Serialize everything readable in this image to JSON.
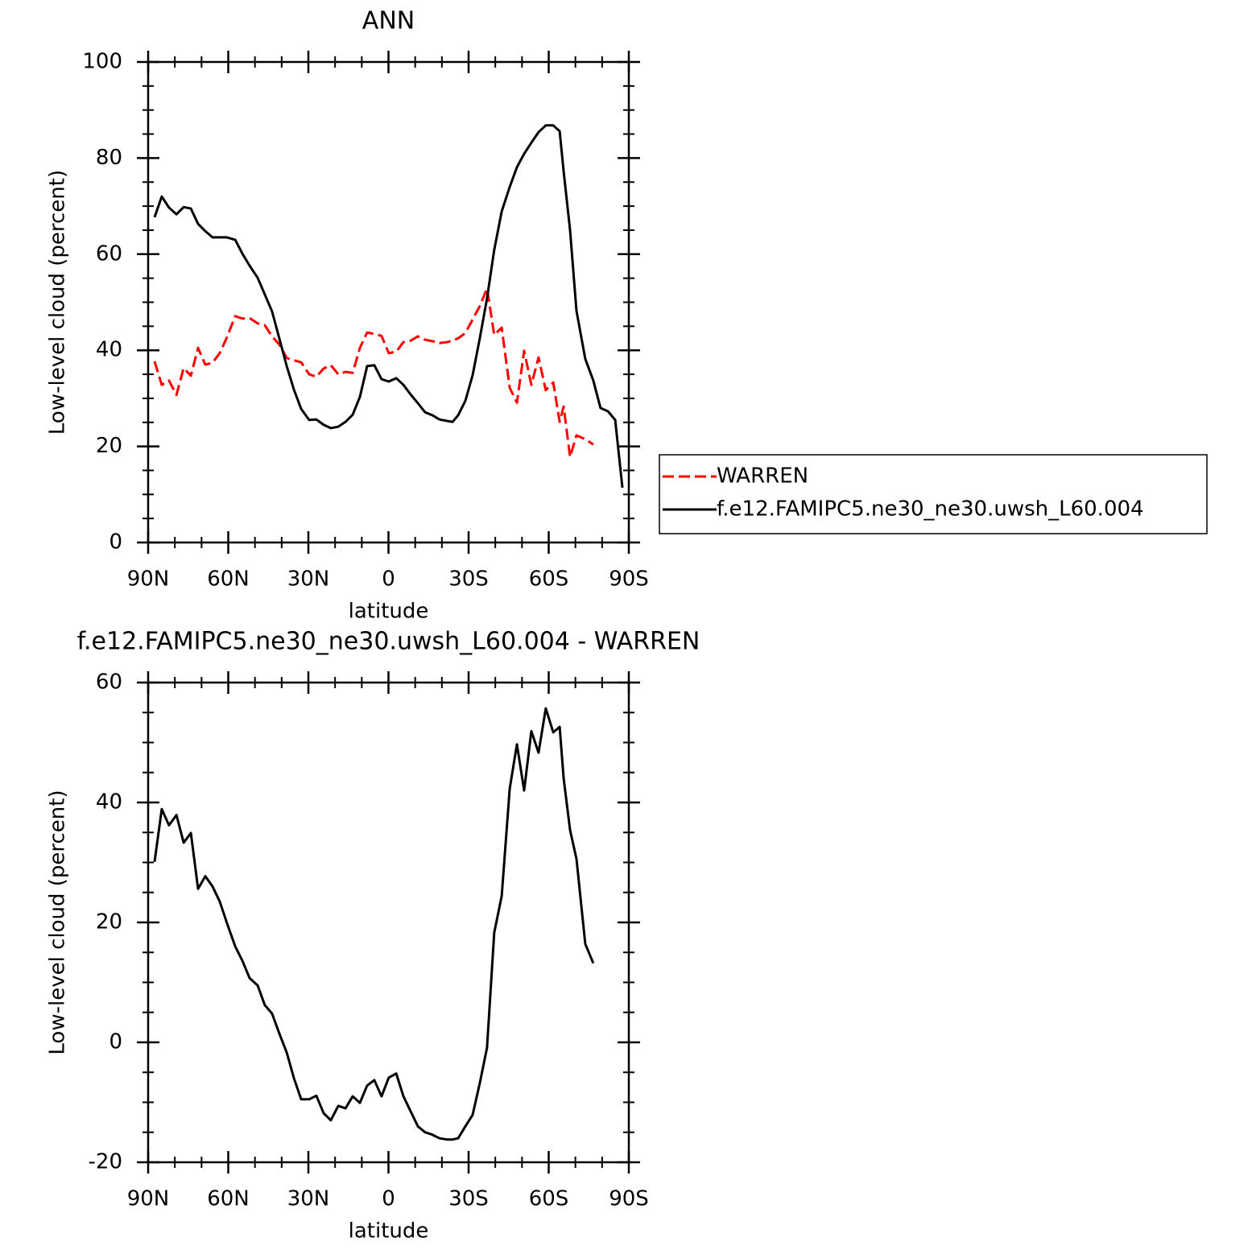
{
  "chart_data": [
    {
      "type": "line",
      "title": "ANN",
      "xlabel": "latitude",
      "ylabel": "Low-level cloud (percent)",
      "x": [
        87.6,
        84.9,
        82.2,
        79.4,
        76.7,
        74.0,
        71.3,
        68.6,
        65.9,
        63.2,
        60.5,
        57.4,
        54.7,
        52.0,
        49.0,
        46.3,
        43.6,
        40.9,
        38.1,
        35.4,
        32.7,
        29.7,
        27.0,
        24.3,
        21.6,
        18.8,
        16.1,
        13.4,
        10.7,
        8.0,
        5.3,
        2.6,
        -0.1,
        -2.9,
        -5.6,
        -8.3,
        -11.0,
        -13.7,
        -16.4,
        -19.1,
        -21.9,
        -24.0,
        -26.1,
        -28.8,
        -31.5,
        -34.2,
        -36.9,
        -39.6,
        -42.4,
        -45.4,
        -48.1,
        -50.8,
        -53.5,
        -56.2,
        -58.9,
        -61.7,
        -64.1,
        -65.6,
        -68.0,
        -70.4,
        -73.7,
        -76.7,
        -79.4,
        -82.2,
        -84.9,
        -87.6
      ],
      "series": [
        {
          "name": "WARREN",
          "color": "#ff0000",
          "dashed": true,
          "values": [
            37.7,
            32.8,
            33.7,
            30.7,
            36.3,
            34.7,
            40.5,
            37.0,
            37.4,
            39.4,
            42.7,
            47.1,
            46.6,
            46.7,
            45.6,
            45.2,
            42.9,
            41.2,
            38.4,
            37.9,
            37.5,
            35.0,
            34.5,
            36.2,
            36.9,
            35.0,
            35.5,
            35.3,
            40.5,
            43.7,
            43.4,
            43.0,
            39.4,
            39.7,
            41.7,
            42.0,
            42.9,
            42.2,
            41.9,
            41.5,
            41.7,
            42.0,
            42.5,
            43.6,
            46.4,
            49.2,
            52.9,
            43.2,
            44.7,
            32.2,
            29.1,
            39.9,
            32.8,
            38.5,
            31.7,
            33.3,
            25.1,
            28.3,
            17.8,
            22.3,
            21.5,
            20.4,
            null,
            null,
            null,
            null
          ]
        },
        {
          "name": "f.e12.FAMIPC5.ne30_ne30.uwsh_L60.004",
          "color": "#000000",
          "dashed": false,
          "values": [
            67.7,
            72.0,
            69.7,
            68.3,
            69.8,
            69.5,
            66.3,
            64.8,
            63.5,
            63.5,
            63.5,
            63.0,
            60.1,
            57.6,
            55.1,
            51.6,
            48.1,
            42.5,
            36.7,
            31.8,
            27.8,
            25.5,
            25.6,
            24.5,
            23.8,
            24.1,
            25.1,
            26.6,
            30.3,
            36.7,
            36.9,
            34.0,
            33.5,
            34.2,
            32.8,
            30.8,
            29.0,
            27.1,
            26.5,
            25.6,
            25.3,
            25.1,
            26.5,
            29.5,
            34.8,
            42.5,
            50.8,
            60.9,
            68.9,
            74.0,
            78.1,
            80.9,
            83.2,
            85.4,
            86.8,
            86.8,
            85.6,
            77.2,
            65.0,
            48.2,
            38.2,
            33.7,
            28.0,
            27.3,
            25.5,
            11.4
          ]
        }
      ],
      "xlim": [
        90,
        -90
      ],
      "xticks": [
        {
          "value": 90,
          "label": "90N"
        },
        {
          "value": 60,
          "label": "60N"
        },
        {
          "value": 30,
          "label": "30N"
        },
        0,
        {
          "value": -30,
          "label": "30S"
        },
        {
          "value": -60,
          "label": "60S"
        },
        {
          "value": -90,
          "label": "90S"
        }
      ],
      "ylim": [
        0,
        100
      ],
      "yticks": [
        0,
        20,
        40,
        60,
        80,
        100
      ],
      "legend": "right"
    },
    {
      "type": "line",
      "title": "f.e12.FAMIPC5.ne30_ne30.uwsh_L60.004 - WARREN",
      "xlabel": "latitude",
      "ylabel": "Low-level cloud (percent)",
      "x": [
        87.6,
        84.9,
        82.2,
        79.4,
        76.7,
        74.0,
        71.3,
        68.6,
        65.9,
        63.2,
        60.5,
        57.4,
        54.7,
        52.0,
        49.0,
        46.3,
        43.6,
        40.9,
        38.1,
        35.4,
        32.7,
        29.7,
        27.0,
        24.3,
        21.6,
        18.8,
        16.1,
        13.4,
        10.7,
        8.0,
        5.3,
        2.6,
        -0.1,
        -2.9,
        -5.6,
        -8.3,
        -11.0,
        -13.7,
        -16.4,
        -19.1,
        -21.9,
        -24.0,
        -26.1,
        -28.8,
        -31.5,
        -34.2,
        -36.9,
        -39.6,
        -42.4,
        -45.4,
        -48.1,
        -50.8,
        -53.5,
        -56.2,
        -58.9,
        -61.7,
        -64.1,
        -65.6,
        -68.0,
        -70.4,
        -73.7,
        -76.7,
        -79.4,
        -82.2,
        -84.9,
        -87.6
      ],
      "series": [
        {
          "color": "#000000",
          "dashed": false,
          "values": [
            30.1,
            38.9,
            36.2,
            37.9,
            33.3,
            34.9,
            25.6,
            27.7,
            26.0,
            23.5,
            19.9,
            16.0,
            13.6,
            10.7,
            9.5,
            6.2,
            4.8,
            1.5,
            -1.7,
            -6.0,
            -9.5,
            -9.5,
            -8.9,
            -11.8,
            -13.0,
            -10.6,
            -11.0,
            -9.0,
            -10.1,
            -7.2,
            -6.3,
            -9.0,
            -5.9,
            -5.2,
            -9.0,
            -11.5,
            -14.0,
            -15.0,
            -15.4,
            -16.0,
            -16.2,
            -16.2,
            -16.0,
            -14.0,
            -12.1,
            -6.8,
            -0.9,
            18.3,
            24.4,
            42.3,
            49.7,
            42.0,
            51.9,
            48.3,
            55.7,
            51.7,
            52.6,
            44.0,
            35.4,
            30.6,
            16.4,
            13.2,
            null,
            null,
            null,
            null
          ]
        }
      ],
      "xlim": [
        90,
        -90
      ],
      "xticks": [
        {
          "value": 90,
          "label": "90N"
        },
        {
          "value": 60,
          "label": "60N"
        },
        {
          "value": 30,
          "label": "30N"
        },
        0,
        {
          "value": -30,
          "label": "30S"
        },
        {
          "value": -60,
          "label": "60S"
        },
        {
          "value": -90,
          "label": "90S"
        }
      ],
      "ylim": [
        -20,
        60
      ],
      "yticks": [
        -20,
        0,
        20,
        40,
        60
      ]
    }
  ]
}
